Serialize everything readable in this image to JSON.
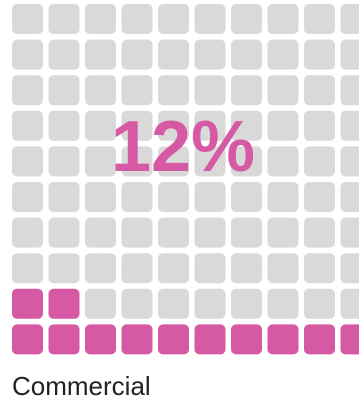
{
  "chart_data": {
    "type": "waffle",
    "categories": [
      "Commercial"
    ],
    "values": [
      12
    ],
    "value_labels": [
      "12%"
    ],
    "color": "#d65aa3",
    "empty_color": "#d9d9d9",
    "rows": 10,
    "columns": 10
  }
}
